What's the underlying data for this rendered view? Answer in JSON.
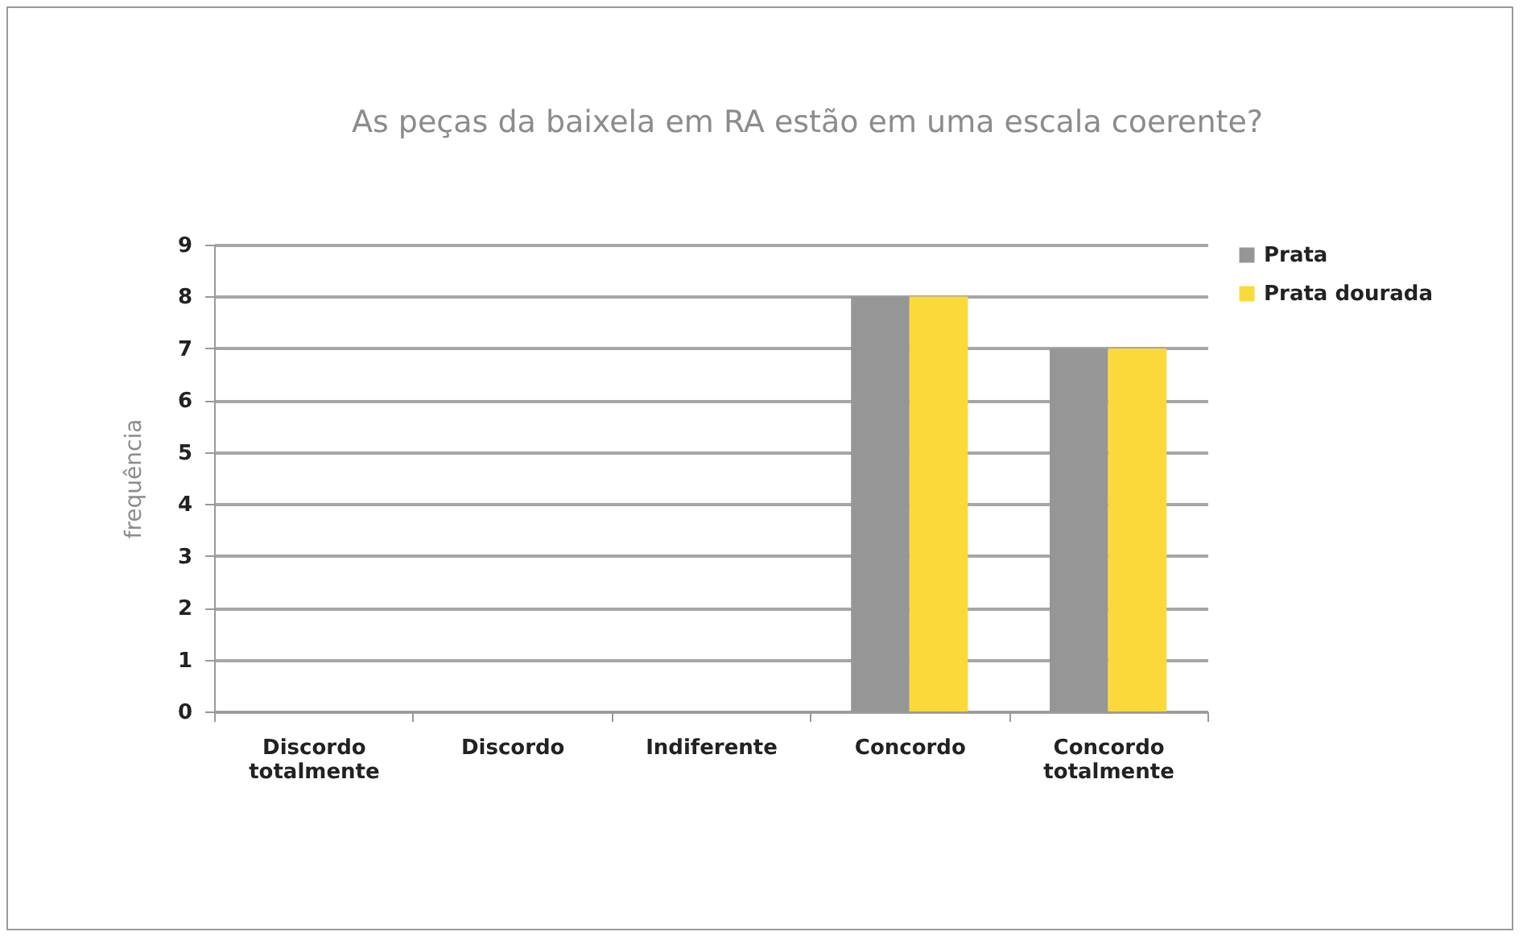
{
  "chart_data": {
    "type": "bar",
    "title": "As peças da baixela em RA estão em uma escala coerente?",
    "ylabel": "frequência",
    "categories": [
      "Discordo totalmente",
      "Discordo",
      "Indiferente",
      "Concordo",
      "Concordo totalmente"
    ],
    "series": [
      {
        "name": "Prata",
        "color": "#969696",
        "values": [
          0,
          0,
          0,
          8,
          7
        ]
      },
      {
        "name": "Prata dourada",
        "color": "#fcd93a",
        "values": [
          0,
          0,
          0,
          8,
          7
        ]
      }
    ],
    "ylim": [
      0,
      9
    ],
    "yticks": [
      0,
      1,
      2,
      3,
      4,
      5,
      6,
      7,
      8,
      9
    ],
    "grid": "y",
    "legend": "right"
  }
}
